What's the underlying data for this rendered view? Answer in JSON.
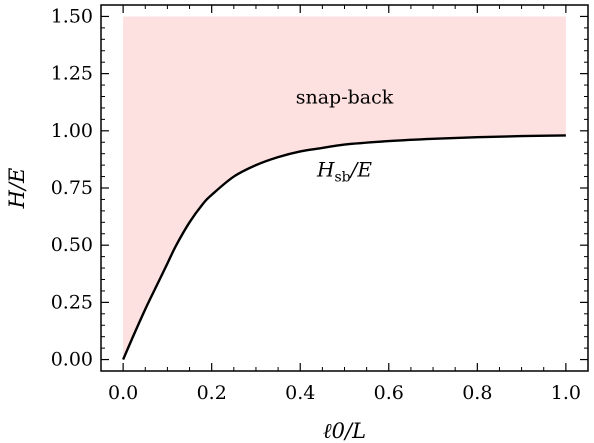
{
  "chart_data": {
    "type": "line",
    "title": "",
    "xlabel": "ℓ0/L",
    "ylabel": "H/E",
    "xlim": [
      -0.05,
      1.05
    ],
    "ylim": [
      -0.05,
      1.55
    ],
    "xticks": [
      0.0,
      0.2,
      0.4,
      0.6,
      0.8,
      1.0
    ],
    "xtick_labels": [
      "0.0",
      "0.2",
      "0.4",
      "0.6",
      "0.8",
      "1.0"
    ],
    "yticks": [
      0.0,
      0.25,
      0.5,
      0.75,
      1.0,
      1.25,
      1.5
    ],
    "ytick_labels": [
      "0.00",
      "0.25",
      "0.50",
      "0.75",
      "1.00",
      "1.25",
      "1.50"
    ],
    "grid": false,
    "series": [
      {
        "x": [
          0.0,
          0.02,
          0.05,
          0.08,
          0.1,
          0.12,
          0.15,
          0.18,
          0.2,
          0.25,
          0.3,
          0.35,
          0.4,
          0.45,
          0.5,
          0.6,
          0.7,
          0.8,
          0.9,
          1.0
        ],
        "y": [
          0.0,
          0.09,
          0.22,
          0.34,
          0.42,
          0.5,
          0.6,
          0.68,
          0.72,
          0.8,
          0.85,
          0.885,
          0.91,
          0.925,
          0.94,
          0.955,
          0.965,
          0.972,
          0.977,
          0.98
        ],
        "color": "#000000"
      }
    ],
    "shaded_region": {
      "label": "snap-back",
      "upper_y": 1.5,
      "color": "#fde0e0"
    },
    "annotations": [
      {
        "text": "snap-back",
        "x": 0.5,
        "y": 1.12
      },
      {
        "text_main": "H",
        "text_sub": "sb",
        "text_tail": "/E",
        "x": 0.5,
        "y": 0.8
      }
    ]
  }
}
